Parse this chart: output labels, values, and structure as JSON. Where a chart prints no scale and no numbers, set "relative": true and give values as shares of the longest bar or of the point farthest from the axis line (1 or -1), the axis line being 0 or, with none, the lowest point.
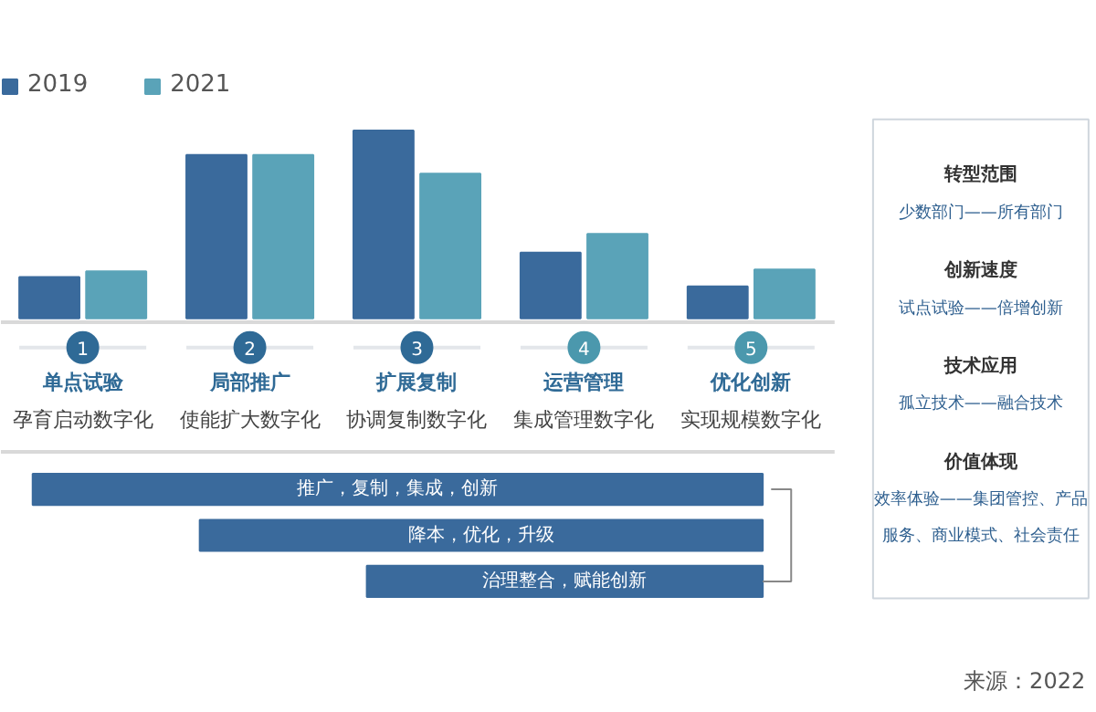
{
  "chart_data": {
    "type": "bar",
    "relative": true,
    "grid": false,
    "legend": "top left",
    "categories": [
      "单点试验",
      "局部推广",
      "扩展复制",
      "运营管理",
      "优化创新"
    ],
    "series": [
      {
        "name": "2019",
        "color": "#3a6a9c",
        "values": [
          0.22,
          0.87,
          1,
          0.35,
          0.17
        ]
      },
      {
        "name": "2021",
        "color": "#5aa3b8",
        "values": [
          0.25,
          0.87,
          0.77,
          0.45,
          0.26
        ]
      }
    ],
    "annotations": [
      "1",
      "2",
      "3",
      "4",
      "5",
      "孕育启动数字化",
      "使能扩大数字化",
      "协调复制数字化",
      "集成管理数字化",
      "实现规模数字化",
      "推广，复制，集成，创新",
      "降本，优化，升级",
      "治理整合，赋能创新",
      "转型范围",
      "少数部门——所有部门",
      "创新速度",
      "试点试验——倍增创新",
      "技术应用",
      "孤立技术——融合技术",
      "价值体现",
      "效率体验——集团管控、产品服务、商业模式、社会责任",
      "来源：2022"
    ]
  }
}
